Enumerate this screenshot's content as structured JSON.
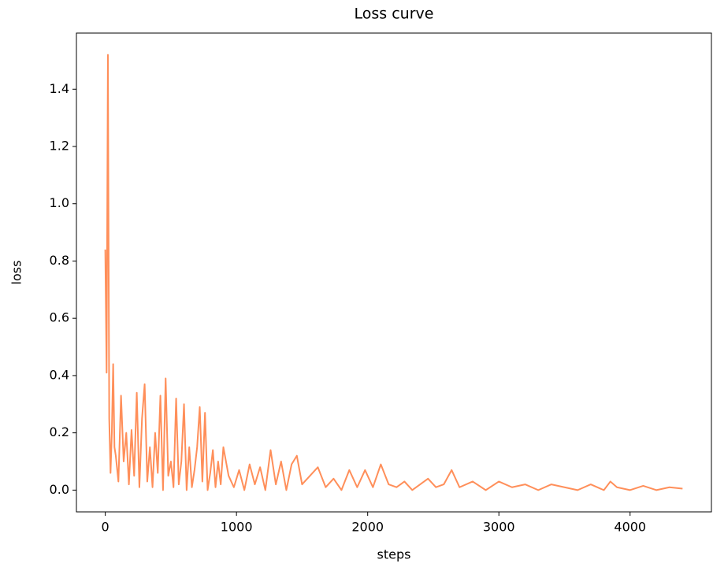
{
  "chart_data": {
    "type": "line",
    "title": "Loss curve",
    "x_label": "steps",
    "y_label": "loss",
    "x": [
      0,
      10,
      20,
      30,
      40,
      50,
      60,
      70,
      80,
      100,
      120,
      140,
      160,
      180,
      200,
      220,
      240,
      260,
      280,
      300,
      320,
      340,
      360,
      380,
      400,
      420,
      440,
      460,
      480,
      500,
      520,
      540,
      560,
      580,
      600,
      620,
      640,
      660,
      680,
      700,
      720,
      740,
      760,
      780,
      800,
      820,
      840,
      860,
      880,
      900,
      940,
      980,
      1020,
      1060,
      1100,
      1140,
      1180,
      1220,
      1260,
      1300,
      1340,
      1380,
      1420,
      1460,
      1500,
      1560,
      1620,
      1680,
      1740,
      1800,
      1860,
      1920,
      1980,
      2040,
      2100,
      2160,
      2220,
      2280,
      2340,
      2400,
      2460,
      2520,
      2580,
      2640,
      2700,
      2800,
      2900,
      3000,
      3100,
      3200,
      3300,
      3400,
      3500,
      3600,
      3700,
      3800,
      3850,
      3900,
      4000,
      4100,
      4200,
      4300,
      4400
    ],
    "series": [
      {
        "name": "loss",
        "color": "#ff8f5a",
        "values": [
          0.84,
          0.41,
          1.52,
          0.25,
          0.06,
          0.2,
          0.44,
          0.15,
          0.12,
          0.03,
          0.33,
          0.1,
          0.2,
          0.02,
          0.21,
          0.05,
          0.34,
          0.01,
          0.25,
          0.37,
          0.03,
          0.15,
          0.01,
          0.2,
          0.06,
          0.33,
          0.0,
          0.39,
          0.05,
          0.1,
          0.01,
          0.32,
          0.02,
          0.1,
          0.3,
          0.0,
          0.15,
          0.01,
          0.07,
          0.15,
          0.29,
          0.03,
          0.27,
          0.0,
          0.06,
          0.14,
          0.01,
          0.1,
          0.02,
          0.15,
          0.05,
          0.01,
          0.07,
          0.0,
          0.09,
          0.02,
          0.08,
          0.0,
          0.14,
          0.02,
          0.1,
          0.0,
          0.09,
          0.12,
          0.02,
          0.05,
          0.08,
          0.01,
          0.04,
          0.0,
          0.07,
          0.01,
          0.07,
          0.01,
          0.09,
          0.02,
          0.01,
          0.03,
          0.0,
          0.02,
          0.04,
          0.01,
          0.02,
          0.07,
          0.01,
          0.03,
          0.0,
          0.03,
          0.01,
          0.02,
          0.0,
          0.02,
          0.01,
          0.0,
          0.02,
          0.0,
          0.03,
          0.01,
          0.0,
          0.015,
          0.0,
          0.01,
          0.005
        ]
      }
    ],
    "xlim": [
      -220,
      4620
    ],
    "xticks": [
      0,
      1000,
      2000,
      3000,
      4000
    ],
    "ylim": [
      -0.076,
      1.596
    ],
    "yticks": [
      {
        "value": 0,
        "label": "0.0"
      },
      0.2,
      0.4,
      0.6,
      0.8,
      {
        "value": 1,
        "label": "1.0"
      },
      1.2,
      1.4
    ],
    "grid": false
  }
}
